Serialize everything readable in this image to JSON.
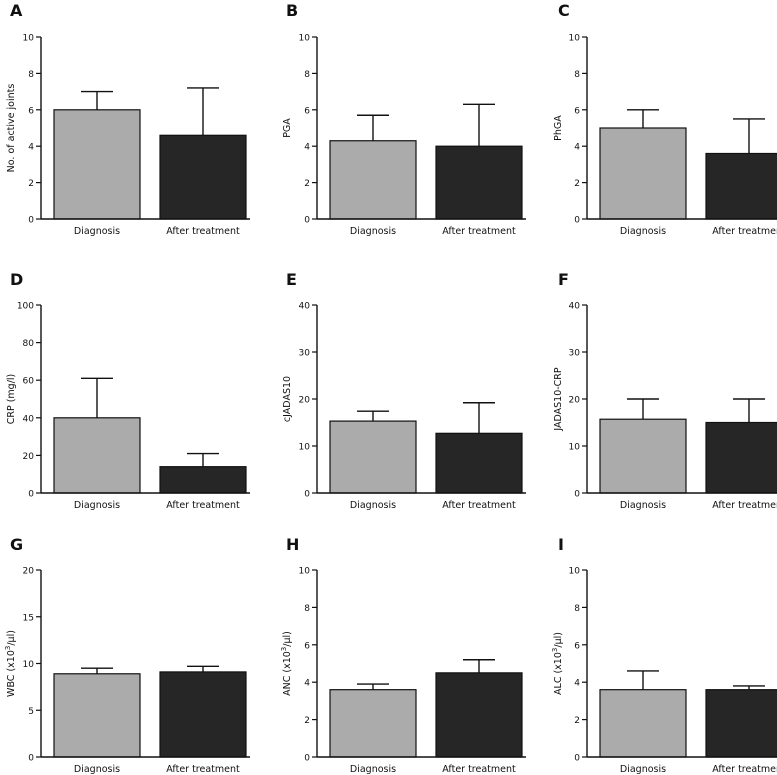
{
  "chart_data": [
    {
      "panel": "A",
      "type": "bar",
      "categories": [
        "Diagnosis",
        "After treatment"
      ],
      "values": [
        6.0,
        4.6
      ],
      "errors": [
        1.0,
        2.6
      ],
      "ylabel": "No. of active joints",
      "ylabel_sup": "",
      "ylabel_tail": "",
      "ylim": [
        0,
        10
      ],
      "yticks": [
        "0",
        "2",
        "4",
        "6",
        "8",
        "10"
      ],
      "colors": [
        "#ababab",
        "#262626"
      ]
    },
    {
      "panel": "B",
      "type": "bar",
      "categories": [
        "Diagnosis",
        "After treatment"
      ],
      "values": [
        4.3,
        4.0
      ],
      "errors": [
        1.4,
        2.3
      ],
      "ylabel": "PGA",
      "ylabel_sup": "",
      "ylabel_tail": "",
      "ylim": [
        0,
        10
      ],
      "yticks": [
        "0",
        "2",
        "4",
        "6",
        "8",
        "10"
      ],
      "colors": [
        "#ababab",
        "#262626"
      ]
    },
    {
      "panel": "C",
      "type": "bar",
      "categories": [
        "Diagnosis",
        "After treatment"
      ],
      "values": [
        5.0,
        3.6
      ],
      "errors": [
        1.0,
        1.9
      ],
      "ylabel": "PhGA",
      "ylabel_sup": "",
      "ylabel_tail": "",
      "ylim": [
        0,
        10
      ],
      "yticks": [
        "0",
        "2",
        "4",
        "6",
        "8",
        "10"
      ],
      "colors": [
        "#ababab",
        "#262626"
      ]
    },
    {
      "panel": "D",
      "type": "bar",
      "categories": [
        "Diagnosis",
        "After treatment"
      ],
      "values": [
        40,
        14
      ],
      "errors": [
        21,
        7
      ],
      "ylabel": "CRP (mg/l)",
      "ylabel_sup": "",
      "ylabel_tail": "",
      "ylim": [
        0,
        100
      ],
      "yticks": [
        "0",
        "20",
        "40",
        "60",
        "80",
        "100"
      ],
      "colors": [
        "#ababab",
        "#262626"
      ]
    },
    {
      "panel": "E",
      "type": "bar",
      "categories": [
        "Diagnosis",
        "After treatment"
      ],
      "values": [
        15.3,
        12.7
      ],
      "errors": [
        2.1,
        6.5
      ],
      "ylabel": "cJADAS10",
      "ylabel_sup": "",
      "ylabel_tail": "",
      "ylim": [
        0,
        40
      ],
      "yticks": [
        "0",
        "10",
        "20",
        "30",
        "40"
      ],
      "colors": [
        "#ababab",
        "#262626"
      ]
    },
    {
      "panel": "F",
      "type": "bar",
      "categories": [
        "Diagnosis",
        "After treatment"
      ],
      "values": [
        15.7,
        15.0
      ],
      "errors": [
        4.3,
        5.0
      ],
      "ylabel": "JADAS10-CRP",
      "ylabel_sup": "",
      "ylabel_tail": "",
      "ylim": [
        0,
        40
      ],
      "yticks": [
        "0",
        "10",
        "20",
        "30",
        "40"
      ],
      "colors": [
        "#ababab",
        "#262626"
      ]
    },
    {
      "panel": "G",
      "type": "bar",
      "categories": [
        "Diagnosis",
        "After treatment"
      ],
      "values": [
        8.9,
        9.1
      ],
      "errors": [
        0.6,
        0.6
      ],
      "ylabel": "WBC (x10",
      "ylabel_sup": "3",
      "ylabel_tail": "/µl)",
      "ylim": [
        0,
        20
      ],
      "yticks": [
        "0",
        "5",
        "10",
        "15",
        "20"
      ],
      "colors": [
        "#ababab",
        "#262626"
      ]
    },
    {
      "panel": "H",
      "type": "bar",
      "categories": [
        "Diagnosis",
        "After treatment"
      ],
      "values": [
        3.6,
        4.5
      ],
      "errors": [
        0.3,
        0.7
      ],
      "ylabel": "ANC (x10",
      "ylabel_sup": "3",
      "ylabel_tail": "/µl)",
      "ylim": [
        0,
        10
      ],
      "yticks": [
        "0",
        "2",
        "4",
        "6",
        "8",
        "10"
      ],
      "colors": [
        "#ababab",
        "#262626"
      ]
    },
    {
      "panel": "I",
      "type": "bar",
      "categories": [
        "Diagnosis",
        "After treatment"
      ],
      "values": [
        3.6,
        3.6
      ],
      "errors": [
        1.0,
        0.2
      ],
      "ylabel": "ALC (x10",
      "ylabel_sup": "3",
      "ylabel_tail": "/µl)",
      "ylim": [
        0,
        10
      ],
      "yticks": [
        "0",
        "2",
        "4",
        "6",
        "8",
        "10"
      ],
      "colors": [
        "#ababab",
        "#262626"
      ]
    }
  ]
}
